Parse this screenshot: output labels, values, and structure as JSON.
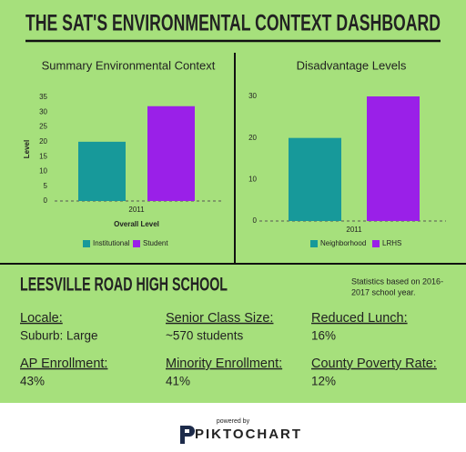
{
  "header": {
    "title": "THE SAT'S ENVIRONMENTAL CONTEXT DASHBOARD"
  },
  "chart_data": [
    {
      "type": "bar",
      "title": "Summary Environmental Context",
      "categories": [
        "2011"
      ],
      "series": [
        {
          "name": "Institutional",
          "color": "#17999a",
          "values": [
            20
          ]
        },
        {
          "name": "Student",
          "color": "#9a20e8",
          "values": [
            32
          ]
        }
      ],
      "xlabel": "Overall Level",
      "ylabel": "Level",
      "ylim": [
        0,
        35
      ],
      "yticks": [
        0,
        5,
        10,
        15,
        20,
        25,
        30,
        35
      ],
      "legend": "bottom"
    },
    {
      "type": "bar",
      "title": "Disadvantage Levels",
      "categories": [
        "2011"
      ],
      "series": [
        {
          "name": "Neighborhood",
          "color": "#17999a",
          "values": [
            20
          ]
        },
        {
          "name": "LRHS",
          "color": "#9a20e8",
          "values": [
            30
          ]
        }
      ],
      "ylim": [
        0,
        30
      ],
      "yticks": [
        0,
        10,
        20,
        30
      ],
      "legend": "bottom"
    }
  ],
  "school": {
    "name": "LEESVILLE ROAD HIGH SCHOOL",
    "note": [
      "Statistics based on 2016-",
      "2017 school year."
    ]
  },
  "stats": [
    {
      "label": "Locale:",
      "value": "Suburb: Large"
    },
    {
      "label": "Senior Class Size:",
      "value": "~570 students"
    },
    {
      "label": "Reduced Lunch:",
      "value": "16%"
    },
    {
      "label": "AP Enrollment:",
      "value": "43%"
    },
    {
      "label": "Minority Enrollment:",
      "value": "41%"
    },
    {
      "label": "County Poverty Rate:",
      "value": "12%"
    }
  ],
  "footer": {
    "powered_by": "powered by",
    "brand": "PIKTOCHART"
  }
}
